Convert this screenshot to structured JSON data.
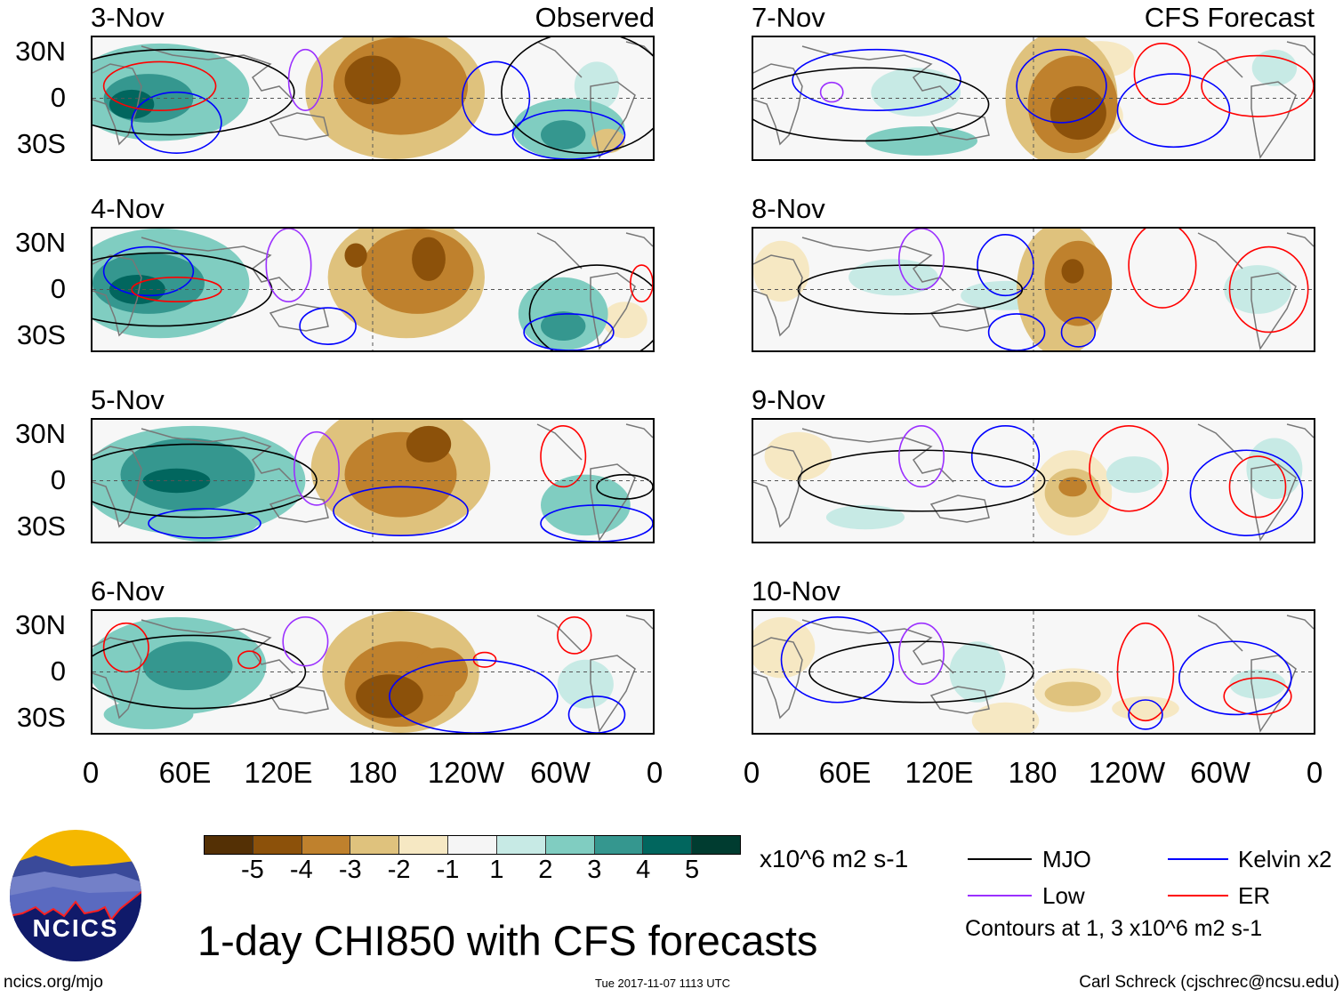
{
  "observed_label": "Observed",
  "forecast_label": "CFS Forecast",
  "observed_panels": [
    "3-Nov",
    "4-Nov",
    "5-Nov",
    "6-Nov"
  ],
  "forecast_panels": [
    "7-Nov",
    "8-Nov",
    "9-Nov",
    "10-Nov"
  ],
  "lat_labels": [
    "30N",
    "0",
    "30S"
  ],
  "lon_labels": [
    "0",
    "60E",
    "120E",
    "180",
    "120W",
    "60W",
    "0"
  ],
  "colorbar": {
    "labels": [
      "-5",
      "-4",
      "-3",
      "-2",
      "-1",
      "1",
      "2",
      "3",
      "4",
      "5"
    ],
    "colors": [
      "#543005",
      "#8c510a",
      "#bf812d",
      "#dfc27d",
      "#f6e8c3",
      "#f5f5f5",
      "#c7eae5",
      "#80cdc1",
      "#35978f",
      "#01665e",
      "#003c30"
    ],
    "units": "x10^6 m2 s-1"
  },
  "legend": {
    "items": [
      {
        "label": "MJO",
        "color": "#000000"
      },
      {
        "label": "Kelvin x2",
        "color": "#0000ff"
      },
      {
        "label": "Low",
        "color": "#9b30ff"
      },
      {
        "label": "ER",
        "color": "#ff0000"
      }
    ],
    "note": "Contours at 1, 3 x10^6 m2 s-1"
  },
  "title": "1-day CHI850 with CFS forecasts",
  "logo_text": "NCICS",
  "website": "ncics.org/mjo",
  "timestamp": "Tue 2017-11-07 1113 UTC",
  "credit": "Carl Schreck (cjschrec@ncsu.edu)"
}
